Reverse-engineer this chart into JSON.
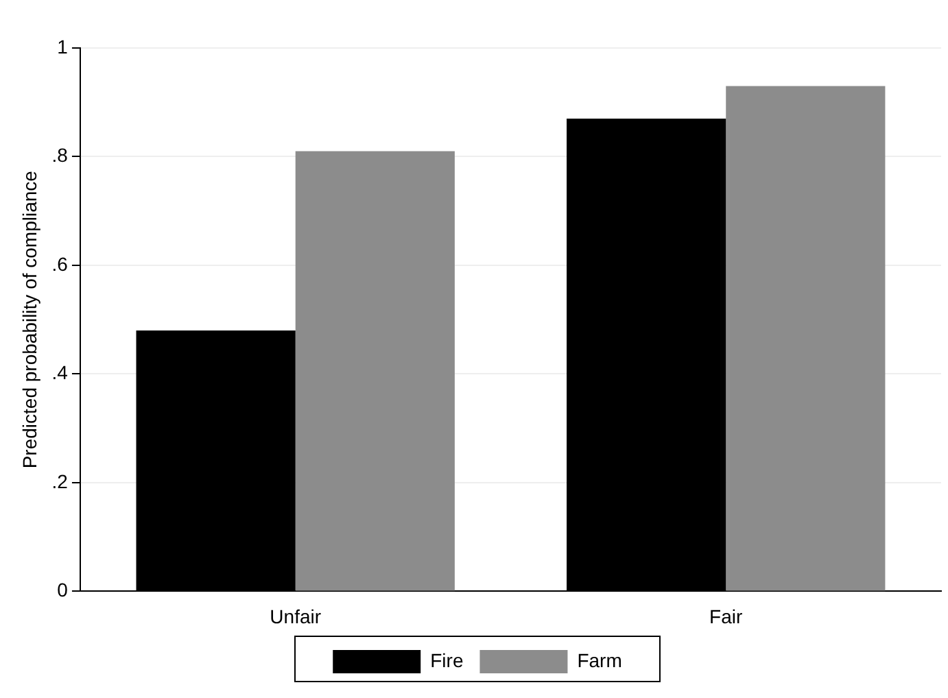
{
  "chart_data": {
    "type": "bar",
    "ylabel": "Predicted probability of compliance",
    "categories": [
      "Unfair",
      "Fair"
    ],
    "series": [
      {
        "name": "Fire",
        "color": "#000000",
        "values": [
          0.48,
          0.87
        ]
      },
      {
        "name": "Farm",
        "color": "#8c8c8c",
        "values": [
          0.81,
          0.93
        ]
      }
    ],
    "ylim": [
      0,
      1
    ],
    "yticks": [
      0,
      {
        "value": 0.2,
        "label": ".2"
      },
      {
        "value": 0.4,
        "label": ".4"
      },
      {
        "value": 0.6,
        "label": ".6"
      },
      {
        "value": 0.8,
        "label": ".8"
      },
      1
    ],
    "grid": "y",
    "legend": "bottom"
  }
}
